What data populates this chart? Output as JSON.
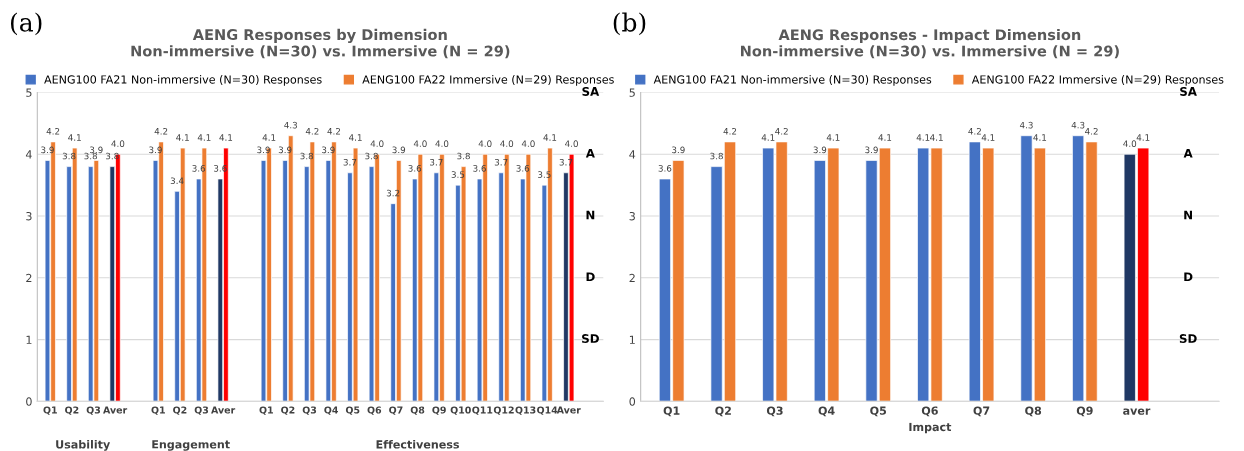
{
  "chart_data": [
    {
      "type": "bar",
      "title": "AENG Responses by Dimension\nNon-immersive (N=30) vs. Immersive (N = 29)",
      "categories": [
        "Q1",
        "Q2",
        "Q3",
        "Aver",
        null,
        "Q1",
        "Q2",
        "Q3",
        "Aver",
        null,
        "Q1",
        "Q2",
        "Q3",
        "Q4",
        "Q5",
        "Q6",
        "Q7",
        "Q8",
        "Q9",
        "Q10",
        "Q11",
        "Q12",
        "Q13",
        "Q14",
        "Aver",
        null
      ],
      "series": [
        {
          "name": "AENG100 FA21 Non-immersive (N=30) Responses",
          "color": "#4472c4",
          "values": [
            3.9,
            3.8,
            3.8,
            3.8,
            null,
            3.9,
            3.4,
            3.6,
            3.6,
            null,
            3.9,
            3.9,
            3.8,
            3.9,
            3.7,
            3.8,
            3.2,
            3.6,
            3.7,
            3.5,
            3.6,
            3.7,
            3.6,
            3.5,
            3.7,
            null
          ],
          "value_labels": [
            "3.9",
            "3.8",
            "3.8",
            "3.8",
            null,
            "3.9",
            "3.4",
            "3.6",
            "3.6",
            null,
            "3.9",
            "3.9",
            "3.8",
            "3.9",
            "3.7",
            "3.8",
            "3.2",
            "3.6",
            "3.7",
            "3.5",
            "3.6",
            "3.7",
            "3.6",
            "3.5",
            "3.7",
            null
          ],
          "colors": [
            "#4472c4",
            "#4472c4",
            "#4472c4",
            "#203864",
            "#4472c4",
            "#4472c4",
            "#4472c4",
            "#4472c4",
            "#203864",
            "#4472c4",
            "#4472c4",
            "#4472c4",
            "#4472c4",
            "#4472c4",
            "#4472c4",
            "#4472c4",
            "#4472c4",
            "#4472c4",
            "#4472c4",
            "#4472c4",
            "#4472c4",
            "#4472c4",
            "#4472c4",
            "#4472c4",
            "#203864",
            "#4472c4"
          ]
        },
        {
          "name": "AENG100 FA22 Immersive (N=29) Responses",
          "color": "#ed7d31",
          "values": [
            4.2,
            4.1,
            3.9,
            4.0,
            null,
            4.2,
            4.1,
            4.1,
            4.1,
            null,
            4.1,
            4.3,
            4.2,
            4.2,
            4.1,
            4.0,
            3.9,
            4.0,
            4.0,
            3.8,
            4.0,
            4.0,
            4.0,
            4.1,
            4.0,
            null
          ],
          "value_labels": [
            "4.2",
            "4.1",
            "3.9",
            "4.0",
            null,
            "4.2",
            "4.1",
            "4.1",
            "4.1",
            null,
            "4.1",
            "4.3",
            "4.2",
            "4.2",
            "4.1",
            "4.0",
            "3.9",
            "4.0",
            "4.0",
            "3.8",
            "4.0",
            "4.0",
            "4.0",
            "4.1",
            "4.0",
            null
          ],
          "colors": [
            "#ed7d31",
            "#ed7d31",
            "#ed7d31",
            "#ff0000",
            "#ed7d31",
            "#ed7d31",
            "#ed7d31",
            "#ed7d31",
            "#ff0000",
            "#ed7d31",
            "#ed7d31",
            "#ed7d31",
            "#ed7d31",
            "#ed7d31",
            "#ed7d31",
            "#ed7d31",
            "#ed7d31",
            "#ed7d31",
            "#ed7d31",
            "#ed7d31",
            "#ed7d31",
            "#ed7d31",
            "#ed7d31",
            "#ed7d31",
            "#ff0000",
            "#ed7d31"
          ]
        }
      ],
      "ylim": [
        0,
        5
      ],
      "yticks": [
        0,
        1,
        2,
        3,
        4,
        5
      ],
      "grid": "y",
      "legend": "top",
      "annotations": [
        "(a)",
        "Usability",
        "Engagement",
        "Effectiveness",
        "SA",
        "A",
        "N",
        "D",
        "SD"
      ]
    },
    {
      "type": "bar",
      "title": "AENG Responses - Impact Dimension\nNon-immersive (N=30) vs. Immersive (N = 29)",
      "xlabel": "Impact",
      "categories": [
        "Q1",
        "Q2",
        "Q3",
        "Q4",
        "Q5",
        "Q6",
        "Q7",
        "Q8",
        "Q9",
        "aver",
        null
      ],
      "series": [
        {
          "name": "AENG100 FA21 Non-immersive (N=30) Responses",
          "color": "#4472c4",
          "values": [
            3.6,
            3.8,
            4.1,
            3.9,
            3.9,
            4.1,
            4.2,
            4.3,
            4.3,
            4.0,
            null
          ],
          "value_labels": [
            "3.6",
            "3.8",
            "4.1",
            "3.9",
            "3.9",
            "4.1",
            "4.2",
            "4.3",
            "4.3",
            "4.0",
            null
          ],
          "colors": [
            "#4472c4",
            "#4472c4",
            "#4472c4",
            "#4472c4",
            "#4472c4",
            "#4472c4",
            "#4472c4",
            "#4472c4",
            "#4472c4",
            "#203864",
            "#4472c4"
          ]
        },
        {
          "name": "AENG100 FA22 Immersive (N=29) Responses",
          "color": "#ed7d31",
          "values": [
            3.9,
            4.2,
            4.2,
            4.1,
            4.1,
            4.1,
            4.1,
            4.1,
            4.2,
            4.1,
            null
          ],
          "value_labels": [
            "3.9",
            "4.2",
            "4.2",
            "4.1",
            "4.1",
            "4.1",
            "4.1",
            "4.1",
            "4.2",
            "4.1",
            null
          ],
          "colors": [
            "#ed7d31",
            "#ed7d31",
            "#ed7d31",
            "#ed7d31",
            "#ed7d31",
            "#ed7d31",
            "#ed7d31",
            "#ed7d31",
            "#ed7d31",
            "#ff0000",
            "#ed7d31"
          ]
        }
      ],
      "ylim": [
        0,
        5
      ],
      "yticks": [
        0,
        1,
        2,
        3,
        4,
        5
      ],
      "grid": "y",
      "legend": "top",
      "annotations": [
        "(b)",
        "SA",
        "A",
        "N",
        "D",
        "SD"
      ]
    }
  ]
}
